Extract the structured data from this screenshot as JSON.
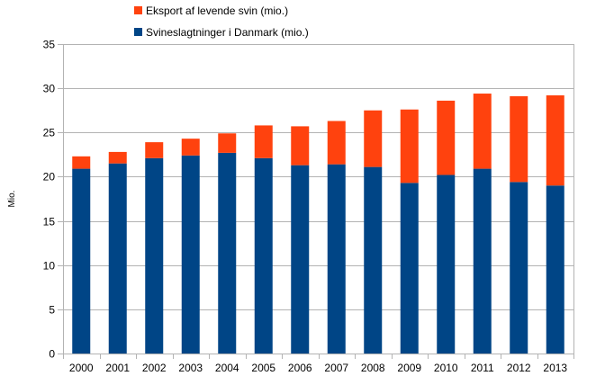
{
  "chart_data": {
    "type": "bar",
    "stacked": true,
    "categories": [
      "2000",
      "2001",
      "2002",
      "2003",
      "2004",
      "2005",
      "2006",
      "2007",
      "2008",
      "2009",
      "2010",
      "2011",
      "2012",
      "2013"
    ],
    "series": [
      {
        "name": "Svineslagtninger i Danmark (mio.)",
        "color": "#004586",
        "values": [
          20.9,
          21.5,
          22.1,
          22.4,
          22.7,
          22.1,
          21.3,
          21.4,
          21.1,
          19.3,
          20.2,
          20.9,
          19.4,
          19.0
        ]
      },
      {
        "name": "Eksport af levende svin (mio.)",
        "color": "#ff420e",
        "values": [
          1.4,
          1.3,
          1.8,
          1.9,
          2.2,
          3.7,
          4.4,
          4.9,
          6.4,
          8.3,
          8.4,
          8.5,
          9.7,
          10.2
        ]
      }
    ],
    "xlabel": "",
    "ylabel": "Mio.",
    "ylim": [
      0,
      35
    ],
    "yticks": [
      "0",
      "5",
      "10",
      "15",
      "20",
      "25",
      "30",
      "35"
    ],
    "grid": true,
    "legend_position": "top"
  }
}
